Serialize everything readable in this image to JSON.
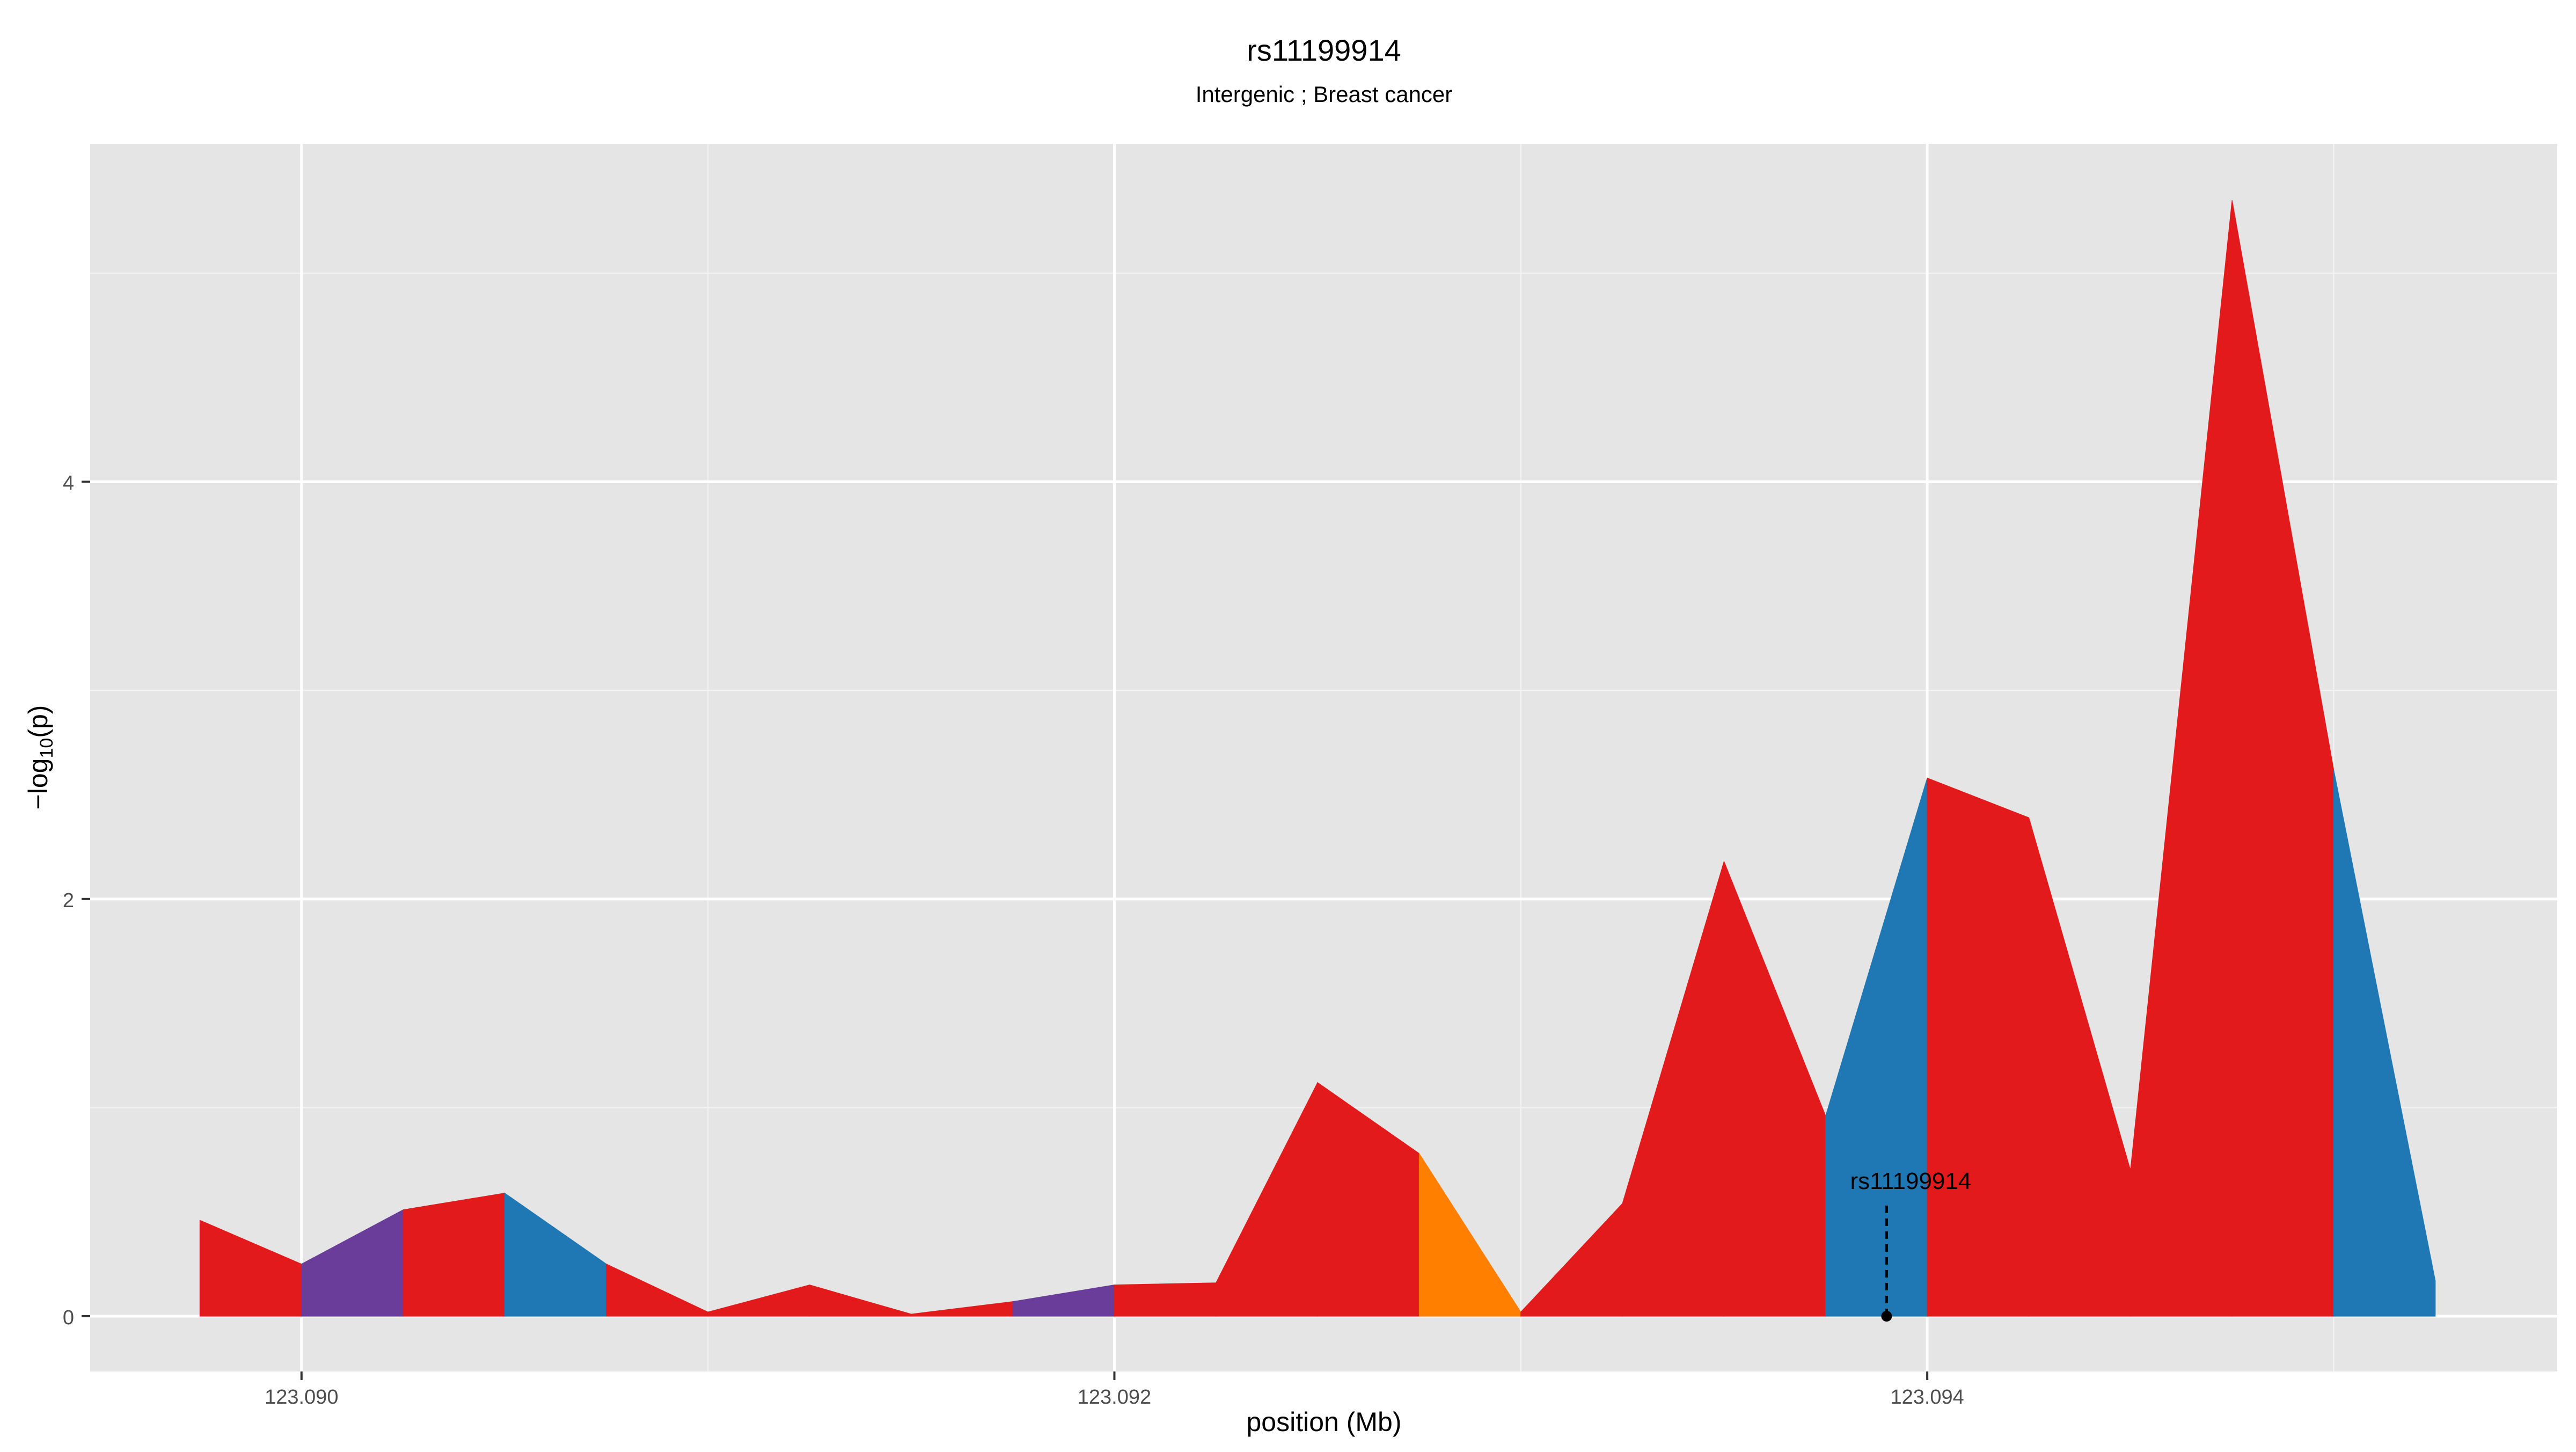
{
  "chart_data": {
    "type": "area",
    "title": "rs11199914",
    "subtitle": "Intergenic ; Breast cancer",
    "xlabel": "position (Mb)",
    "ylabel_main": "−log",
    "ylabel_sub": "10",
    "ylabel_end": "(p)",
    "xlim": [
      123.08948,
      123.09555
    ],
    "ylim": [
      -0.265,
      5.62
    ],
    "x_ticks": [
      123.09,
      123.092,
      123.094
    ],
    "x_tick_labels": [
      "123.090",
      "123.092",
      "123.094"
    ],
    "x_minor": [
      123.091,
      123.093,
      123.095
    ],
    "y_ticks": [
      0,
      2,
      4
    ],
    "y_tick_labels": [
      "0",
      "2",
      "4"
    ],
    "y_minor": [
      1,
      3,
      5
    ],
    "grid": true,
    "panel_color": "#e5e5e5",
    "points": [
      {
        "x": 123.08975,
        "y": 0.46
      },
      {
        "x": 123.09,
        "y": 0.25
      },
      {
        "x": 123.09025,
        "y": 0.51
      },
      {
        "x": 123.0905,
        "y": 0.59
      },
      {
        "x": 123.09075,
        "y": 0.25
      },
      {
        "x": 123.091,
        "y": 0.02
      },
      {
        "x": 123.09125,
        "y": 0.15
      },
      {
        "x": 123.0915,
        "y": 0.01
      },
      {
        "x": 123.09175,
        "y": 0.07
      },
      {
        "x": 123.092,
        "y": 0.15
      },
      {
        "x": 123.09225,
        "y": 0.16
      },
      {
        "x": 123.0925,
        "y": 1.12
      },
      {
        "x": 123.09275,
        "y": 0.78
      },
      {
        "x": 123.093,
        "y": 0.02
      },
      {
        "x": 123.09325,
        "y": 0.54
      },
      {
        "x": 123.0935,
        "y": 2.18
      },
      {
        "x": 123.09375,
        "y": 0.96
      },
      {
        "x": 123.094,
        "y": 2.58
      },
      {
        "x": 123.09425,
        "y": 2.39
      },
      {
        "x": 123.0945,
        "y": 0.7
      },
      {
        "x": 123.09475,
        "y": 5.35
      },
      {
        "x": 123.095,
        "y": 2.62
      },
      {
        "x": 123.09525,
        "y": 0.17
      }
    ],
    "segment_colors": [
      "#e31a1c",
      "#6a3d9a",
      "#e31a1c",
      "#1f78b4",
      "#e31a1c",
      "#e31a1c",
      "#e31a1c",
      "#e31a1c",
      "#6a3d9a",
      "#e31a1c",
      "#e31a1c",
      "#e31a1c",
      "#ff7f00",
      "#e31a1c",
      "#e31a1c",
      "#e31a1c",
      "#1f78b4",
      "#e31a1c",
      "#e31a1c",
      "#e31a1c",
      "#e31a1c",
      "#1f78b4"
    ],
    "annotation": {
      "label": "rs11199914",
      "x": 123.0939,
      "y_line_top": 0.53,
      "y_label": 0.61
    }
  }
}
